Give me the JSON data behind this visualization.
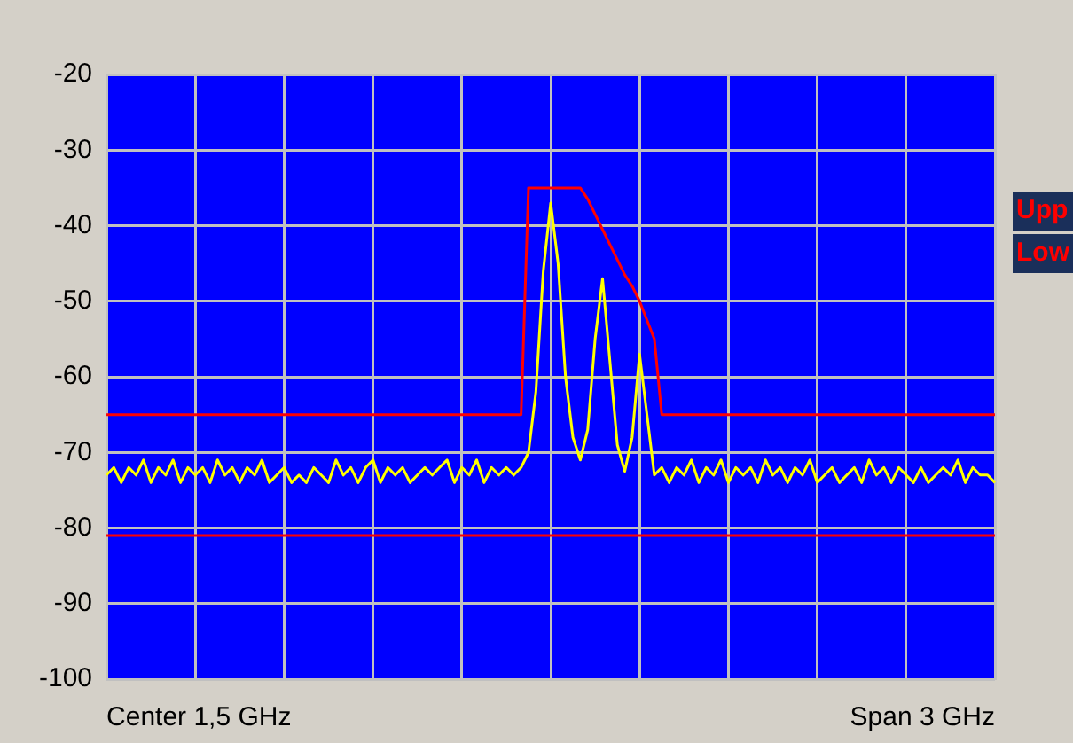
{
  "chart_data": {
    "type": "line",
    "ylim": [
      -100,
      -20
    ],
    "categories": [
      null,
      null,
      null,
      null,
      null,
      null,
      null,
      null,
      null,
      null,
      null,
      null,
      null,
      null,
      null,
      null,
      null,
      null,
      null,
      null,
      null,
      null,
      null,
      null,
      null,
      null,
      null,
      null,
      null,
      null,
      null,
      null,
      null,
      null,
      null,
      null,
      null,
      null,
      null,
      null,
      null,
      null,
      null,
      null,
      null,
      null,
      null,
      null,
      null,
      null,
      null,
      null,
      null,
      null,
      null,
      null,
      null,
      null,
      null,
      null,
      null,
      null,
      null,
      null,
      null,
      null,
      null,
      null,
      null,
      null,
      null,
      null,
      null,
      null,
      null,
      null,
      null,
      null,
      null,
      null,
      null,
      null,
      null,
      null,
      null,
      null,
      null,
      null,
      null,
      null,
      null,
      null,
      null,
      null,
      null,
      null,
      null,
      null,
      null,
      null,
      null,
      null,
      null,
      null,
      null,
      null,
      null,
      null,
      null,
      null,
      null,
      null,
      null,
      null,
      null,
      null,
      null,
      null,
      null,
      null,
      null
    ],
    "yticks": [
      -20,
      -30,
      -40,
      -50,
      -60,
      -70,
      -80,
      -90,
      -100
    ],
    "tick_labels": "y",
    "grid": true,
    "legend": "right",
    "marker": "none",
    "line_style": "solid",
    "annotations": [
      "Center 1,5 GHz",
      "Span 3 GHz"
    ],
    "series": [
      {
        "color": "#ffff00",
        "values": [
          -73,
          -72,
          -74,
          -72,
          -73,
          -71,
          -74,
          -72,
          -73,
          -71,
          -74,
          -72,
          -73,
          -72,
          -74,
          -71,
          -73,
          -72,
          -74,
          -72,
          -73,
          -71,
          -74,
          -73,
          -72,
          -74,
          -73,
          -74,
          -72,
          -73,
          -74,
          -71,
          -73,
          -72,
          -74,
          -72,
          -71,
          -74,
          -72,
          -73,
          -72,
          -74,
          -73,
          -72,
          -73,
          -72,
          -71,
          -74,
          -72,
          -73,
          -71,
          -74,
          -72,
          -73,
          -72,
          -73,
          -72,
          -70,
          -62,
          -46,
          -37,
          -45,
          -60,
          -68,
          -71,
          -67,
          -55,
          -47,
          -58,
          -69,
          -72.5,
          -68,
          -57,
          -65,
          -73,
          -72,
          -74,
          -72,
          -73,
          -71,
          -74,
          -72,
          -73,
          -71,
          -74,
          -72,
          -73,
          -72,
          -74,
          -71,
          -73,
          -72,
          -74,
          -72,
          -73,
          -71,
          -74,
          -73,
          -72,
          -74,
          -73,
          -72,
          -74,
          -71,
          -73,
          -72,
          -74,
          -72,
          -73,
          -74,
          -72,
          -74,
          -73,
          -72,
          -73,
          -71,
          -74,
          -72,
          -73,
          -73,
          -74
        ]
      },
      {
        "name": "Upp",
        "color": "#ff0000",
        "values": [
          -65,
          -65,
          -65,
          -65,
          -65,
          -65,
          -65,
          -65,
          -65,
          -65,
          -65,
          -65,
          -65,
          -65,
          -65,
          -65,
          -65,
          -65,
          -65,
          -65,
          -65,
          -65,
          -65,
          -65,
          -65,
          -65,
          -65,
          -65,
          -65,
          -65,
          -65,
          -65,
          -65,
          -65,
          -65,
          -65,
          -65,
          -65,
          -65,
          -65,
          -65,
          -65,
          -65,
          -65,
          -65,
          -65,
          -65,
          -65,
          -65,
          -65,
          -65,
          -65,
          -65,
          -65,
          -65,
          -65,
          -65,
          -35,
          -35,
          -35,
          -35,
          -35,
          -35,
          -35,
          -35,
          -36.5,
          -38.5,
          -40.5,
          -42.5,
          -44.5,
          -46.5,
          -48,
          -50,
          -52.5,
          -55,
          -65,
          -65,
          -65,
          -65,
          -65,
          -65,
          -65,
          -65,
          -65,
          -65,
          -65,
          -65,
          -65,
          -65,
          -65,
          -65,
          -65,
          -65,
          -65,
          -65,
          -65,
          -65,
          -65,
          -65,
          -65,
          -65,
          -65,
          -65,
          -65,
          -65,
          -65,
          -65,
          -65,
          -65,
          -65,
          -65,
          -65,
          -65,
          -65,
          -65,
          -65,
          -65,
          -65,
          -65,
          -65,
          -65
        ]
      },
      {
        "name": "Low",
        "color": "#ff0000",
        "values": [
          -81,
          -81,
          -81,
          -81,
          -81,
          -81,
          -81,
          -81,
          -81,
          -81,
          -81,
          -81,
          -81,
          -81,
          -81,
          -81,
          -81,
          -81,
          -81,
          -81,
          -81,
          -81,
          -81,
          -81,
          -81,
          -81,
          -81,
          -81,
          -81,
          -81,
          -81,
          -81,
          -81,
          -81,
          -81,
          -81,
          -81,
          -81,
          -81,
          -81,
          -81,
          -81,
          -81,
          -81,
          -81,
          -81,
          -81,
          -81,
          -81,
          -81,
          -81,
          -81,
          -81,
          -81,
          -81,
          -81,
          -81,
          -81,
          -81,
          -81,
          -81,
          -81,
          -81,
          -81,
          -81,
          -81,
          -81,
          -81,
          -81,
          -81,
          -81,
          -81,
          -81,
          -81,
          -81,
          -81,
          -81,
          -81,
          -81,
          -81,
          -81,
          -81,
          -81,
          -81,
          -81,
          -81,
          -81,
          -81,
          -81,
          -81,
          -81,
          -81,
          -81,
          -81,
          -81,
          -81,
          -81,
          -81,
          -81,
          -81,
          -81,
          -81,
          -81,
          -81,
          -81,
          -81,
          -81,
          -81,
          -81,
          -81,
          -81,
          -81,
          -81,
          -81,
          -81,
          -81,
          -81,
          -81,
          -81,
          -81,
          -81
        ]
      }
    ]
  }
}
